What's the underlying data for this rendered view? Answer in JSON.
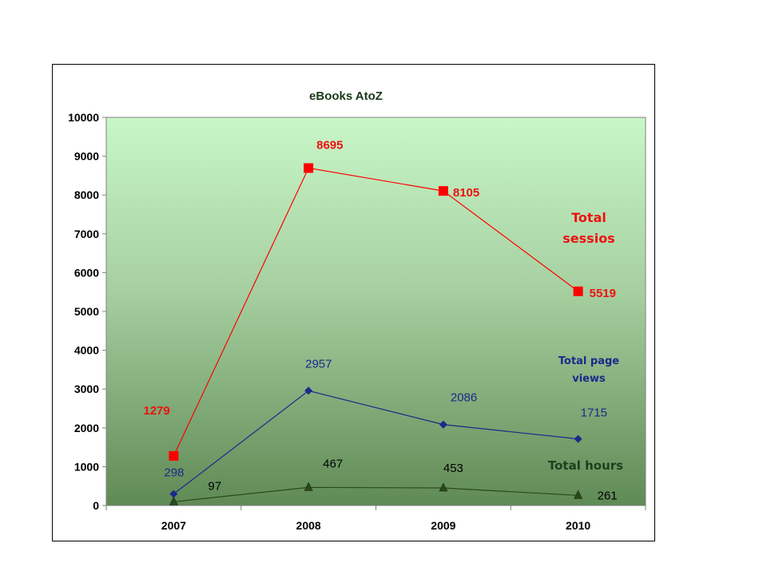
{
  "chart_data": {
    "type": "line",
    "title": "eBooks AtoZ",
    "xlabel": "",
    "ylabel": "",
    "categories": [
      "2007",
      "2008",
      "2009",
      "2010"
    ],
    "ylim": [
      0,
      10000
    ],
    "yticks": [
      "0",
      "1000",
      "2000",
      "3000",
      "4000",
      "5000",
      "6000",
      "7000",
      "8000",
      "9000",
      "10000"
    ],
    "grid": false,
    "plot_background": "green gradient (light top to dark bottom)",
    "series": [
      {
        "name": "Total sessios",
        "name_lines": [
          "Total",
          "sessios"
        ],
        "values": [
          1279,
          8695,
          8105,
          5519
        ],
        "value_labels": [
          "1279",
          "8695",
          "8105",
          "5519"
        ],
        "color": "#ff0000",
        "label_color": "#ee1111",
        "marker": "square"
      },
      {
        "name": "Total page views",
        "name_lines": [
          "Total page",
          "views"
        ],
        "values": [
          298,
          2957,
          2086,
          1715
        ],
        "value_labels": [
          "298",
          "2957",
          "2086",
          "1715"
        ],
        "color": "#1a2a8a",
        "label_color": "#1a2a8a",
        "marker": "diamond"
      },
      {
        "name": "Total hours",
        "name_lines": [
          "Total  hours"
        ],
        "values": [
          97,
          467,
          453,
          261
        ],
        "value_labels": [
          "97",
          "467",
          "453",
          "261"
        ],
        "color": "#2a4a1a",
        "label_color": "#000000",
        "marker": "triangle"
      }
    ]
  }
}
